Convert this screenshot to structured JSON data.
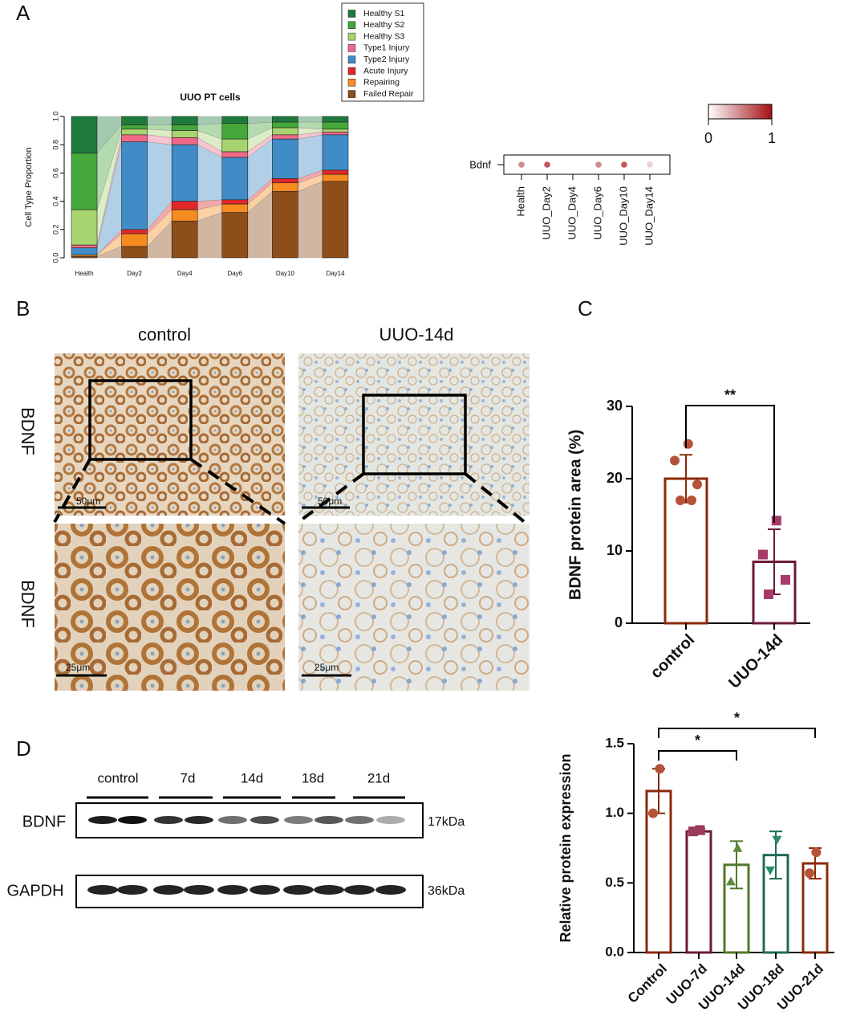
{
  "panel_labels": [
    "A",
    "B",
    "C",
    "D"
  ],
  "chart_data": [
    {
      "type": "stacked_bar",
      "title": "UUO PT cells",
      "y_label": "Cell Type Proportion",
      "categories": [
        "Health",
        "Day2",
        "Day4",
        "Day6",
        "Day10",
        "Day14"
      ],
      "series": [
        {
          "name": "Healthy S1",
          "color": "#1e7a3c",
          "values": [
            0.26,
            0.06,
            0.06,
            0.05,
            0.04,
            0.04
          ]
        },
        {
          "name": "Healthy S2",
          "color": "#45a83a",
          "values": [
            0.4,
            0.03,
            0.04,
            0.11,
            0.04,
            0.05
          ]
        },
        {
          "name": "Healthy S3",
          "color": "#a8d46f",
          "values": [
            0.25,
            0.04,
            0.05,
            0.09,
            0.05,
            0.02
          ]
        },
        {
          "name": "Type1 Injury",
          "color": "#ef6a8a",
          "values": [
            0.02,
            0.05,
            0.05,
            0.04,
            0.03,
            0.02
          ]
        },
        {
          "name": "Type2 Injury",
          "color": "#3f8cc6",
          "values": [
            0.05,
            0.62,
            0.4,
            0.3,
            0.28,
            0.25
          ]
        },
        {
          "name": "Acute Injury",
          "color": "#e2272b",
          "values": [
            0.0,
            0.03,
            0.06,
            0.03,
            0.03,
            0.03
          ]
        },
        {
          "name": "Repairing",
          "color": "#f68b1f",
          "values": [
            0.01,
            0.09,
            0.08,
            0.06,
            0.06,
            0.05
          ]
        },
        {
          "name": "Failed Repair",
          "color": "#8e4e19",
          "values": [
            0.01,
            0.08,
            0.26,
            0.32,
            0.47,
            0.54
          ]
        }
      ],
      "ylim": [
        0,
        1
      ],
      "yticks": [
        {
          "value": 0,
          "label": "0.0"
        },
        {
          "value": 0.2,
          "label": "0.2"
        },
        {
          "value": 0.4,
          "label": "0.4"
        },
        {
          "value": 0.6,
          "label": "0.6"
        },
        {
          "value": 0.8,
          "label": "0.8"
        },
        {
          "value": 1,
          "label": "1.0"
        }
      ]
    },
    {
      "type": "dot",
      "gene": "Bdnf",
      "categories": [
        "Health",
        "UUO_Day2",
        "UUO_Day4",
        "UUO_Day6",
        "UUO_Day10",
        "UUO_Day14"
      ],
      "values": [
        0.5,
        0.7,
        0,
        0.5,
        0.7,
        0.2
      ],
      "color_scale": [
        "#ffffff",
        "#a50f15"
      ],
      "clim": [
        0,
        1
      ],
      "cticks": [
        0,
        1
      ]
    },
    {
      "type": "bar",
      "y_label": "BDNF protein area (%)",
      "categories": [
        "control",
        "UUO-14d"
      ],
      "values": [
        20,
        8.5
      ],
      "errors": [
        3.3,
        4.5
      ],
      "points": [
        [
          24.8,
          22.5,
          19.2,
          17,
          17
        ],
        [
          14.2,
          9.5,
          6,
          4
        ]
      ],
      "bar_colors": [
        "#8b2a0a",
        "#6b1a3c"
      ],
      "point_colors": [
        "#b5533a",
        "#a83a6a"
      ],
      "markers": [
        "circle",
        "square"
      ],
      "ylim": [
        0,
        30
      ],
      "yticks": [
        0,
        10,
        20,
        30
      ],
      "annotations": [
        {
          "text": "**",
          "between": [
            "control",
            "UUO-14d"
          ]
        }
      ]
    },
    {
      "type": "bar",
      "y_label": "Relative protein expression",
      "categories": [
        "Control",
        "UUO-7d",
        "UUO-14d",
        "UUO-18d",
        "UUO-21d"
      ],
      "values": [
        1.16,
        0.87,
        0.63,
        0.7,
        0.64
      ],
      "errors": [
        0.16,
        0.02,
        0.17,
        0.17,
        0.11
      ],
      "points": [
        [
          1.32,
          1.0
        ],
        [
          0.88,
          0.87
        ],
        [
          0.75,
          0.51
        ],
        [
          0.81,
          0.59
        ],
        [
          0.72,
          0.57
        ]
      ],
      "bar_colors": [
        "#8b2a0a",
        "#6b1a3c",
        "#4f7a2a",
        "#1f6b5a",
        "#8b2a0a"
      ],
      "point_colors": [
        "#b5533a",
        "#9b3a5a",
        "#5f8a3a",
        "#2a8a70",
        "#b5533a"
      ],
      "markers": [
        "circle",
        "square",
        "triangle",
        "triangle-down",
        "circle"
      ],
      "ylim": [
        0,
        1.5
      ],
      "yticks": [
        {
          "value": 0,
          "label": "0.0"
        },
        {
          "value": 0.5,
          "label": "0.5"
        },
        {
          "value": 1,
          "label": "1.0"
        },
        {
          "value": 1.5,
          "label": "1.5"
        }
      ],
      "annotations": [
        {
          "text": "*",
          "between": [
            "Control",
            "UUO-14d"
          ]
        },
        {
          "text": "*",
          "between": [
            "Control",
            "UUO-21d"
          ]
        }
      ]
    }
  ],
  "histology": {
    "columns": [
      "control",
      "UUO-14d"
    ],
    "rows": [
      "BDNF",
      "BDNF"
    ],
    "scale_bars": [
      "50μm",
      "25μm"
    ]
  },
  "western_blot": {
    "groups": [
      "control",
      "7d",
      "14d",
      "18d",
      "21d"
    ],
    "bands": [
      {
        "name": "BDNF",
        "size": "17kDa"
      },
      {
        "name": "GAPDH",
        "size": "36kDa"
      }
    ]
  }
}
